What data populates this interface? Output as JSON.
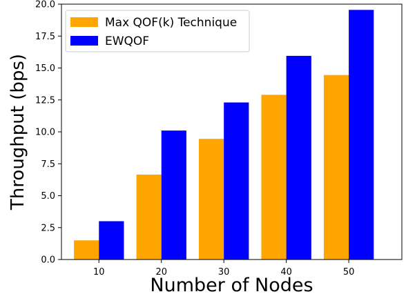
{
  "chart_data": {
    "type": "bar",
    "xlabel": "Number of Nodes",
    "ylabel": "Throughput (bps)",
    "categories": [
      "10",
      "20",
      "30",
      "40",
      "50"
    ],
    "series": [
      {
        "name": "Max QOF(k) Technique",
        "color": "#FFA500",
        "values": [
          1.5,
          6.65,
          9.45,
          12.9,
          14.45
        ]
      },
      {
        "name": "EWQOF",
        "color": "#0000FF",
        "values": [
          3.0,
          10.1,
          12.3,
          15.95,
          19.55
        ]
      }
    ],
    "ylim": [
      0,
      20
    ],
    "yticks": [
      "0.0",
      "2.5",
      "5.0",
      "7.5",
      "10.0",
      "12.5",
      "15.0",
      "17.5",
      "20.0"
    ],
    "grid": false,
    "legend_position": "top-left"
  }
}
